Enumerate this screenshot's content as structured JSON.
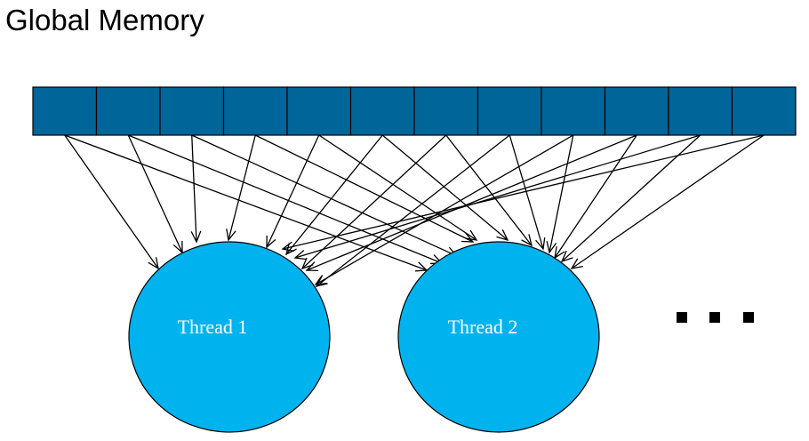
{
  "title": "Global Memory",
  "memory": {
    "cell_count": 12,
    "cell_color": "#006699",
    "border_color": "#000000"
  },
  "threads": [
    {
      "label": "Thread 1",
      "color": "#00b2ee"
    },
    {
      "label": "Thread 2",
      "color": "#00b2ee"
    }
  ],
  "ellipsis_icon": "ellipsis-icon",
  "connections": "every memory cell points to each thread"
}
